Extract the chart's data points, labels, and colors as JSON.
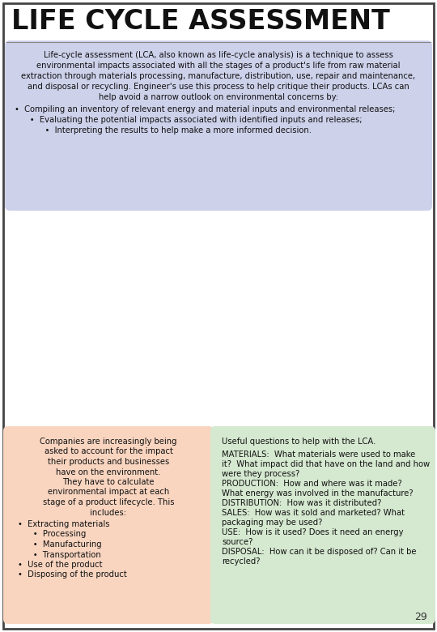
{
  "title": "LIFE CYCLE ASSESSMENT",
  "bg_color": "#ffffff",
  "border_color": "#444444",
  "page_number": "29",
  "intro_box_color": "#c8cce8",
  "intro_text": "Life-cycle assessment (LCA, also known as life-cycle analysis) is a technique to assess\nenvironmental impacts associated with all the stages of a product's life from raw material\nextraction through materials processing, manufacture, distribution, use, repair and maintenance,\nand disposal or recycling. Engineer's use this process to help critique their products. LCAs can\nhelp avoid a narrow outlook on environmental concerns by:",
  "intro_bullets": [
    "•  Compiling an inventory of relevant energy and material inputs and environmental releases;",
    "      •  Evaluating the potential impacts associated with identified inputs and releases;",
    "            •  Interpreting the results to help make a more informed decision."
  ],
  "left_box_color": "#f9d5c0",
  "left_box_text_lines": [
    "Companies are increasingly being",
    "asked to account for the impact",
    "their products and businesses",
    "have on the environment.",
    "They have to calculate",
    "environmental impact at each",
    "stage of a product lifecycle. This",
    "includes:"
  ],
  "left_bullets": [
    "•  Extracting materials",
    "      •  Processing",
    "      •  Manufacturing",
    "      •  Transportation",
    "•  Use of the product",
    "•  Disposing of the product"
  ],
  "right_box_color": "#d5e8d0",
  "right_box_title": "Useful questions to help with the LCA.",
  "right_text_lines": [
    "MATERIALS:  What materials were used to make",
    "it?  What impact did that have on the land and how",
    "were they process?",
    "PRODUCTION:  How and where was it made?",
    "What energy was involved in the manufacture?",
    "DISTRIBUTION:  How was it distributed?",
    "SALES:  How was it sold and marketed? What",
    "packaging may be used?",
    "USE:  How is it used? Does it need an energy",
    "source?",
    "DISPOSAL:  How can it be disposed of? Can it be",
    "recycled?"
  ]
}
